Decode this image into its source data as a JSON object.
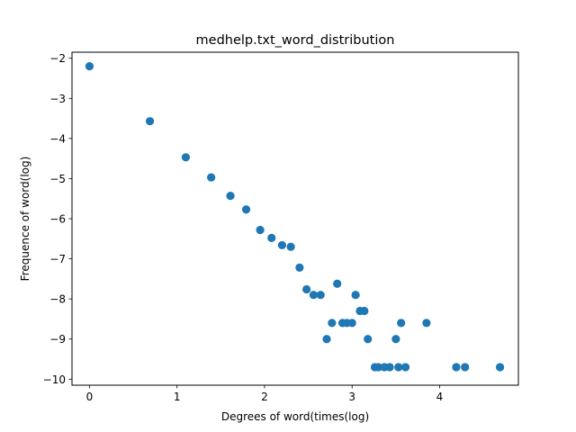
{
  "chart_data": {
    "type": "scatter",
    "title": "medhelp.txt_word_distribution",
    "xlabel": "Degrees of word(times(log)",
    "ylabel": "Frequence of word(log)",
    "xlim": [
      -0.2,
      4.9
    ],
    "ylim": [
      -10.15,
      -1.85
    ],
    "xticks": [
      0,
      1,
      2,
      3,
      4
    ],
    "yticks": [
      -2,
      -3,
      -4,
      -5,
      -6,
      -7,
      -8,
      -9,
      -10
    ],
    "xtick_labels": [
      "0",
      "1",
      "2",
      "3",
      "4"
    ],
    "ytick_labels": [
      "−2",
      "−3",
      "−4",
      "−5",
      "−6",
      "−7",
      "−8",
      "−9",
      "−10"
    ],
    "grid": false,
    "legend": "none",
    "series": [
      {
        "color": "#1f77b4",
        "points": [
          {
            "x": 0.0,
            "y": -2.2
          },
          {
            "x": 0.69,
            "y": -3.57
          },
          {
            "x": 1.1,
            "y": -4.47
          },
          {
            "x": 1.39,
            "y": -4.97
          },
          {
            "x": 1.61,
            "y": -5.43
          },
          {
            "x": 1.79,
            "y": -5.77
          },
          {
            "x": 1.95,
            "y": -6.28
          },
          {
            "x": 2.08,
            "y": -6.48
          },
          {
            "x": 2.2,
            "y": -6.66
          },
          {
            "x": 2.3,
            "y": -6.7
          },
          {
            "x": 2.4,
            "y": -7.22
          },
          {
            "x": 2.48,
            "y": -7.76
          },
          {
            "x": 2.56,
            "y": -7.9
          },
          {
            "x": 2.64,
            "y": -7.9
          },
          {
            "x": 2.71,
            "y": -9.0
          },
          {
            "x": 2.77,
            "y": -8.6
          },
          {
            "x": 2.83,
            "y": -7.62
          },
          {
            "x": 2.89,
            "y": -8.6
          },
          {
            "x": 2.94,
            "y": -8.6
          },
          {
            "x": 3.0,
            "y": -8.6
          },
          {
            "x": 3.04,
            "y": -7.9
          },
          {
            "x": 3.09,
            "y": -8.3
          },
          {
            "x": 3.14,
            "y": -8.3
          },
          {
            "x": 3.18,
            "y": -9.0
          },
          {
            "x": 3.26,
            "y": -9.7
          },
          {
            "x": 3.3,
            "y": -9.7
          },
          {
            "x": 3.37,
            "y": -9.7
          },
          {
            "x": 3.43,
            "y": -9.7
          },
          {
            "x": 3.5,
            "y": -9.0
          },
          {
            "x": 3.53,
            "y": -9.7
          },
          {
            "x": 3.56,
            "y": -8.6
          },
          {
            "x": 3.61,
            "y": -9.7
          },
          {
            "x": 3.85,
            "y": -8.6
          },
          {
            "x": 4.19,
            "y": -9.7
          },
          {
            "x": 4.29,
            "y": -9.7
          },
          {
            "x": 4.69,
            "y": -9.7
          }
        ]
      }
    ]
  }
}
